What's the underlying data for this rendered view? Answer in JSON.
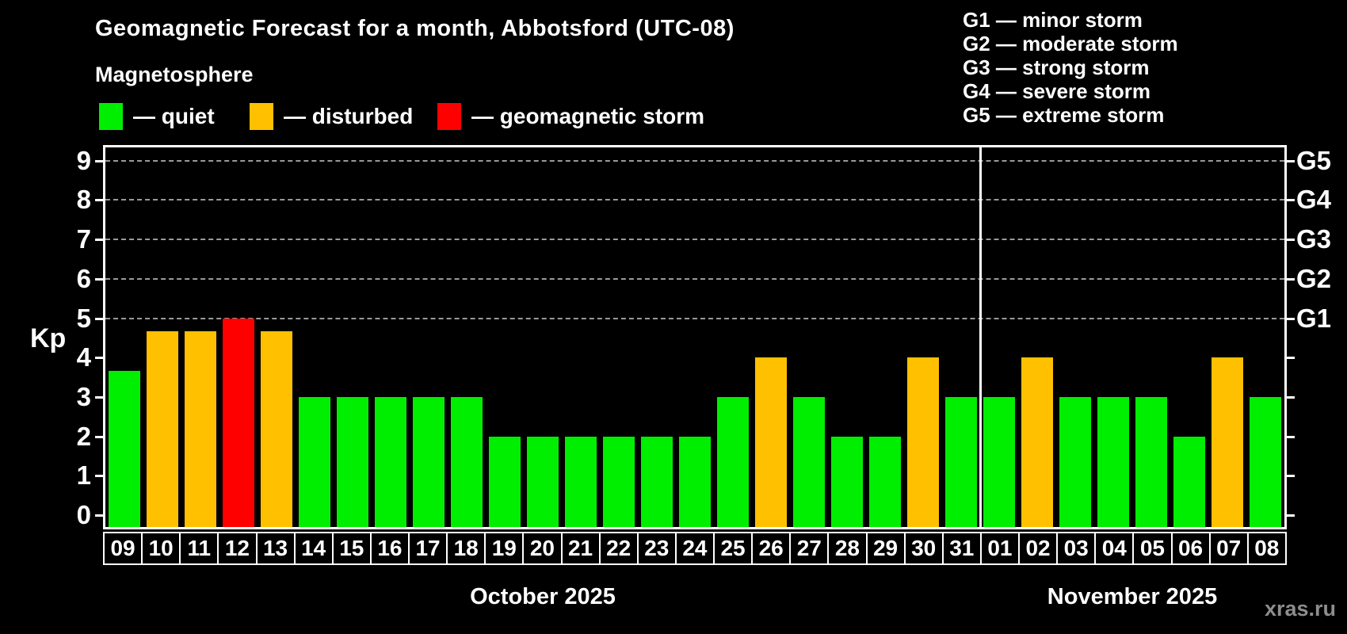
{
  "header": {
    "title": "Geomagnetic Forecast for a month, Abbotsford (UTC-08)",
    "subtitle": "Magnetosphere"
  },
  "colors": {
    "quiet": "#00ee00",
    "disturbed": "#ffc000",
    "storm": "#ff0000",
    "background": "#000000",
    "axis": "#ffffff",
    "gridline": "#9a9a9a",
    "watermark_gray": "#8d8d8d"
  },
  "legend": {
    "items": [
      {
        "status": "quiet",
        "color": "#00ee00",
        "label": "— quiet"
      },
      {
        "status": "disturbed",
        "color": "#ffc000",
        "label": "— disturbed"
      },
      {
        "status": "storm",
        "color": "#ff0000",
        "label": "— geomagnetic storm"
      }
    ]
  },
  "g_scale_legend": [
    "G1 — minor storm",
    "G2 — moderate storm",
    "G3 — strong storm",
    "G4 — severe storm",
    "G5 — extreme storm"
  ],
  "watermark": "xras.ru",
  "chart_data": {
    "type": "bar",
    "title": "Geomagnetic Forecast for a month, Abbotsford (UTC-08)",
    "ylabel": "Kp",
    "ylim": [
      0,
      9.4
    ],
    "yticks": [
      0,
      1,
      2,
      3,
      4,
      5,
      6,
      7,
      8,
      9
    ],
    "gridlines_at": [
      5,
      6,
      7,
      8,
      9
    ],
    "grid": "horizontal dashed lines at storm levels Kp 5-9",
    "legend_position": "top",
    "right_axis": [
      {
        "label": "G1",
        "kp": 5
      },
      {
        "label": "G2",
        "kp": 6
      },
      {
        "label": "G3",
        "kp": 7
      },
      {
        "label": "G4",
        "kp": 8
      },
      {
        "label": "G5",
        "kp": 9
      }
    ],
    "months": [
      {
        "label": "October 2025",
        "days": 23
      },
      {
        "label": "November 2025",
        "days": 8
      }
    ],
    "bars": [
      {
        "day": "09",
        "kp": 3.67,
        "status": "quiet"
      },
      {
        "day": "10",
        "kp": 4.67,
        "status": "disturbed"
      },
      {
        "day": "11",
        "kp": 4.67,
        "status": "disturbed"
      },
      {
        "day": "12",
        "kp": 5,
        "status": "storm"
      },
      {
        "day": "13",
        "kp": 4.67,
        "status": "disturbed"
      },
      {
        "day": "14",
        "kp": 3,
        "status": "quiet"
      },
      {
        "day": "15",
        "kp": 3,
        "status": "quiet"
      },
      {
        "day": "16",
        "kp": 3,
        "status": "quiet"
      },
      {
        "day": "17",
        "kp": 3,
        "status": "quiet"
      },
      {
        "day": "18",
        "kp": 3,
        "status": "quiet"
      },
      {
        "day": "19",
        "kp": 2,
        "status": "quiet"
      },
      {
        "day": "20",
        "kp": 2,
        "status": "quiet"
      },
      {
        "day": "21",
        "kp": 2,
        "status": "quiet"
      },
      {
        "day": "22",
        "kp": 2,
        "status": "quiet"
      },
      {
        "day": "23",
        "kp": 2,
        "status": "quiet"
      },
      {
        "day": "24",
        "kp": 2,
        "status": "quiet"
      },
      {
        "day": "25",
        "kp": 3,
        "status": "quiet"
      },
      {
        "day": "26",
        "kp": 4,
        "status": "disturbed"
      },
      {
        "day": "27",
        "kp": 3,
        "status": "quiet"
      },
      {
        "day": "28",
        "kp": 2,
        "status": "quiet"
      },
      {
        "day": "29",
        "kp": 2,
        "status": "quiet"
      },
      {
        "day": "30",
        "kp": 4,
        "status": "disturbed"
      },
      {
        "day": "31",
        "kp": 3,
        "status": "quiet"
      },
      {
        "day": "01",
        "kp": 3,
        "status": "quiet"
      },
      {
        "day": "02",
        "kp": 4,
        "status": "disturbed"
      },
      {
        "day": "03",
        "kp": 3,
        "status": "quiet"
      },
      {
        "day": "04",
        "kp": 3,
        "status": "quiet"
      },
      {
        "day": "05",
        "kp": 3,
        "status": "quiet"
      },
      {
        "day": "06",
        "kp": 2,
        "status": "quiet"
      },
      {
        "day": "07",
        "kp": 4,
        "status": "disturbed"
      },
      {
        "day": "08",
        "kp": 3,
        "status": "quiet"
      }
    ]
  }
}
